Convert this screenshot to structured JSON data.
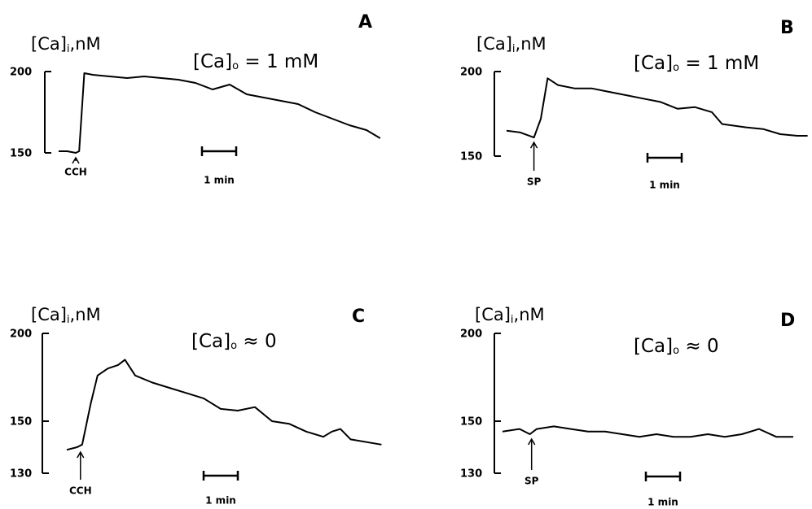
{
  "chart_data": [
    {
      "type": "line",
      "panel": "A",
      "y_label": "[Ca]i,nM",
      "condition": "[Ca]o = 1 mM",
      "color": "#000000",
      "ylim": [
        150,
        200
      ],
      "yticks": [
        150,
        200
      ],
      "x": [
        0,
        0.25,
        0.5,
        0.6,
        0.75,
        1,
        1.5,
        2,
        2.5,
        3,
        3.5,
        4,
        4.5,
        5,
        5.5,
        6,
        6.5,
        7,
        7.5,
        8,
        8.5,
        9,
        9.4
      ],
      "values": [
        151,
        151,
        150,
        151,
        199,
        198,
        197,
        196,
        197,
        196,
        195,
        193,
        189,
        192,
        186,
        184,
        182,
        180,
        175,
        171,
        167,
        164,
        159
      ],
      "stimulus": {
        "x": 0.5,
        "label": "CCH"
      },
      "scale_bar": {
        "value": 1,
        "label": "1 min"
      }
    },
    {
      "type": "line",
      "panel": "B",
      "y_label": "[Ca]i,nM",
      "condition": "[Ca]o = 1 mM",
      "color": "#000000",
      "ylim": [
        150,
        200
      ],
      "yticks": [
        150,
        200
      ],
      "x": [
        0,
        0.4,
        0.8,
        1,
        1.2,
        1.5,
        2,
        2.5,
        3,
        3.5,
        4,
        4.5,
        5,
        5.5,
        6,
        6.3,
        7,
        7.5,
        8,
        8.5,
        8.8
      ],
      "values": [
        165,
        164,
        161,
        172,
        196,
        192,
        190,
        190,
        188,
        186,
        184,
        182,
        178,
        179,
        176,
        169,
        167,
        166,
        163,
        162,
        162
      ],
      "stimulus": {
        "x": 0.8,
        "label": "SP"
      },
      "scale_bar": {
        "value": 1,
        "label": "1 min"
      }
    },
    {
      "type": "line",
      "panel": "C",
      "y_label": "[Ca]i,nM",
      "condition": "[Ca]o ≈ 0",
      "color": "#000000",
      "ylim": [
        130,
        200
      ],
      "yticks": [
        130,
        150,
        200
      ],
      "x": [
        0,
        0.3,
        0.45,
        0.7,
        0.9,
        1.2,
        1.5,
        1.7,
        2,
        2.5,
        3,
        3.5,
        4,
        4.5,
        5,
        5.5,
        6,
        6.5,
        7,
        7.5,
        7.75,
        8,
        8.3,
        9.2
      ],
      "values": [
        139,
        140,
        141,
        160,
        176,
        180,
        182,
        185,
        176,
        172,
        169,
        166,
        163,
        157,
        156,
        158,
        150,
        149,
        146,
        144,
        146,
        147,
        143,
        141
      ],
      "stimulus": {
        "x": 0.4,
        "label": "CCH"
      },
      "scale_bar": {
        "value": 1,
        "label": "1 min"
      }
    },
    {
      "type": "line",
      "panel": "D",
      "y_label": "[Ca]i,nM",
      "condition": "[Ca]o ≈ 0",
      "color": "#000000",
      "ylim": [
        130,
        200
      ],
      "yticks": [
        130,
        150,
        200
      ],
      "x": [
        0,
        0.5,
        0.8,
        1,
        1.5,
        2,
        2.5,
        3,
        3.5,
        4,
        4.5,
        5,
        5.5,
        6,
        6.5,
        7,
        7.5,
        8,
        8.5
      ],
      "values": [
        146,
        147,
        145,
        147,
        148,
        147,
        146,
        146,
        145,
        144,
        145,
        144,
        144,
        145,
        144,
        145,
        147,
        144,
        144
      ],
      "stimulus": {
        "x": 0.85,
        "label": "SP"
      },
      "scale_bar": {
        "value": 1,
        "label": "1 min"
      }
    }
  ]
}
